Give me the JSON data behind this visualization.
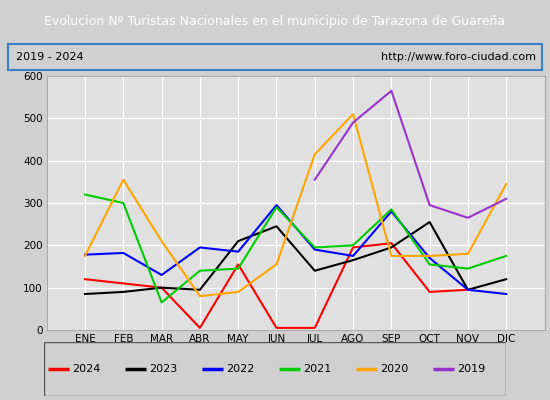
{
  "title": "Evolucion Nº Turistas Nacionales en el municipio de Tarazona de Guareña",
  "subtitle_left": "2019 - 2024",
  "subtitle_right": "http://www.foro-ciudad.com",
  "x_labels": [
    "ENE",
    "FEB",
    "MAR",
    "ABR",
    "MAY",
    "JUN",
    "JUL",
    "AGO",
    "SEP",
    "OCT",
    "NOV",
    "DIC"
  ],
  "ylim": [
    0,
    600
  ],
  "yticks": [
    0,
    100,
    200,
    300,
    400,
    500,
    600
  ],
  "series": {
    "2024": {
      "color": "#ff0000",
      "values": [
        120,
        110,
        100,
        5,
        155,
        5,
        5,
        195,
        205,
        90,
        95,
        null
      ]
    },
    "2023": {
      "color": "#000000",
      "values": [
        85,
        90,
        100,
        95,
        210,
        245,
        140,
        165,
        195,
        255,
        95,
        120
      ]
    },
    "2022": {
      "color": "#0000ff",
      "values": [
        178,
        182,
        130,
        195,
        185,
        295,
        190,
        175,
        280,
        170,
        95,
        85
      ]
    },
    "2021": {
      "color": "#00cc00",
      "values": [
        320,
        300,
        65,
        140,
        145,
        290,
        195,
        200,
        285,
        155,
        145,
        175
      ]
    },
    "2020": {
      "color": "#ffa500",
      "values": [
        175,
        355,
        210,
        80,
        90,
        155,
        415,
        510,
        175,
        175,
        180,
        345
      ]
    },
    "2019": {
      "color": "#9933cc",
      "values": [
        null,
        null,
        null,
        null,
        null,
        null,
        355,
        490,
        565,
        295,
        265,
        310
      ]
    }
  },
  "title_bg_color": "#3a7ec8",
  "title_text_color": "#ffffff",
  "plot_bg_color": "#e0e0e0",
  "fig_bg_color": "#d0d0d0",
  "grid_color": "#ffffff",
  "subtitle_border_color": "#3a7ec8",
  "legend_order": [
    "2024",
    "2023",
    "2022",
    "2021",
    "2020",
    "2019"
  ]
}
